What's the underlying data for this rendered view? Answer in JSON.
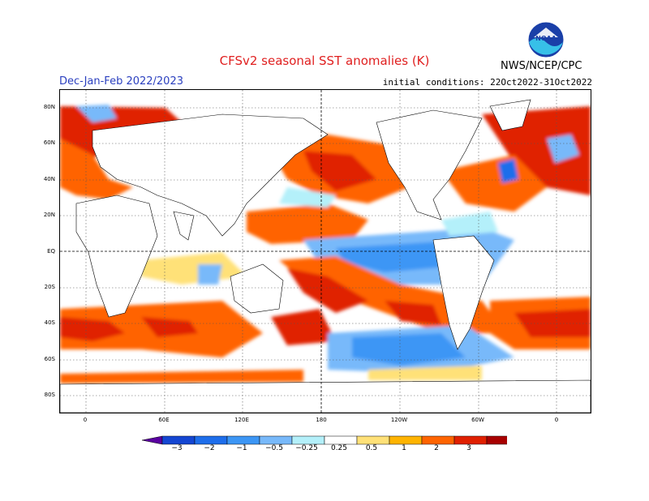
{
  "header": {
    "title": "CFSv2 seasonal SST anomalies (K)",
    "period": "Dec-Jan-Feb 2022/2023",
    "initial_conditions": "initial conditions: 22Oct2022-31Oct2022",
    "agency": "NWS/NCEP/CPC",
    "logo_text": "NOAA"
  },
  "map": {
    "lat_labels": [
      "80N",
      "60N",
      "40N",
      "20N",
      "EQ",
      "20S",
      "40S",
      "60S",
      "80S"
    ],
    "lon_labels": [
      "0",
      "60E",
      "120E",
      "180",
      "120W",
      "60W",
      "0"
    ],
    "anomaly_colors": {
      "strong_warm": "#a80000",
      "warm": "#e02000",
      "moderate_warm": "#ff6400",
      "weak_warm": "#ffb400",
      "slight_warm": "#ffe178",
      "neutral": "#ffffff",
      "slight_cool": "#b4f0fa",
      "weak_cool": "#78b9fa",
      "moderate_cool": "#3c96f5",
      "cool": "#1e6eeb",
      "strong_cool": "#1446d2"
    }
  },
  "colorbar": {
    "ticks": [
      "−3",
      "−2",
      "−1",
      "−0.5",
      "−0.25",
      "0.25",
      "0.5",
      "1",
      "2",
      "3"
    ],
    "colors": [
      "#5a00a0",
      "#1446d2",
      "#1e6eeb",
      "#3c96f5",
      "#78b9fa",
      "#b4f0fa",
      "#ffffff",
      "#ffe178",
      "#ffb400",
      "#ff6400",
      "#e02000",
      "#a80000",
      "#6e4628"
    ]
  }
}
